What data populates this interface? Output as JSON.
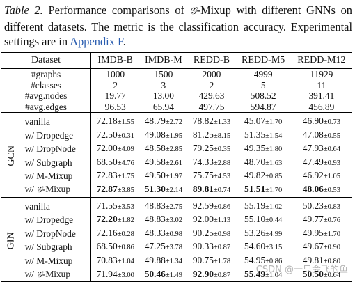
{
  "caption": {
    "label": "Table 2.",
    "text_before": "Performance comparisons of",
    "g_symbol": "𝒢",
    "text_mid": "-Mixup with different GNNs on different datasets. The metric is the classification accuracy. Experimental settings are in",
    "link": "Appendix F",
    "text_end": "."
  },
  "header": {
    "dataset": "Dataset",
    "cols": [
      "IMDB-B",
      "IMDB-M",
      "REDD-B",
      "REDD-M5",
      "REDD-M12"
    ]
  },
  "stats": [
    {
      "label": "#graphs",
      "values": [
        "1000",
        "1500",
        "2000",
        "4999",
        "11929"
      ]
    },
    {
      "label": "#classes",
      "values": [
        "2",
        "3",
        "2",
        "5",
        "11"
      ]
    },
    {
      "label": "#avg.nodes",
      "values": [
        "19.77",
        "13.00",
        "429.63",
        "508.52",
        "391.41"
      ]
    },
    {
      "label": "#avg.edges",
      "values": [
        "96.53",
        "65.94",
        "497.75",
        "594.87",
        "456.89"
      ]
    }
  ],
  "sections": [
    {
      "name": "GCN",
      "rows": [
        {
          "method": "vanilla",
          "cells": [
            [
              "72.18",
              "1.55",
              false
            ],
            [
              "48.79",
              "2.72",
              false
            ],
            [
              "78.82",
              "1.33",
              false
            ],
            [
              "45.07",
              "1.70",
              false
            ],
            [
              "46.90",
              "0.73",
              false
            ]
          ]
        },
        {
          "method": "w/ Dropedge",
          "cells": [
            [
              "72.50",
              "0.31",
              false
            ],
            [
              "49.08",
              "1.95",
              false
            ],
            [
              "81.25",
              "8.15",
              false
            ],
            [
              "51.35",
              "1.54",
              false
            ],
            [
              "47.08",
              "0.55",
              false
            ]
          ]
        },
        {
          "method": "w/ DropNode",
          "cells": [
            [
              "72.00",
              "4.09",
              false
            ],
            [
              "48.58",
              "2.85",
              false
            ],
            [
              "79.25",
              "0.35",
              false
            ],
            [
              "49.35",
              "1.80",
              false
            ],
            [
              "47.93",
              "0.64",
              false
            ]
          ]
        },
        {
          "method": "w/ Subgraph",
          "cells": [
            [
              "68.50",
              "4.76",
              false
            ],
            [
              "49.58",
              "2.61",
              false
            ],
            [
              "74.33",
              "2.88",
              false
            ],
            [
              "48.70",
              "1.63",
              false
            ],
            [
              "47.49",
              "0.93",
              false
            ]
          ]
        },
        {
          "method": "w/ M-Mixup",
          "cells": [
            [
              "72.83",
              "1.75",
              false
            ],
            [
              "49.50",
              "1.97",
              false
            ],
            [
              "75.75",
              "4.53",
              false
            ],
            [
              "49.82",
              "0.85",
              false
            ],
            [
              "46.92",
              "1.05",
              false
            ]
          ]
        },
        {
          "method_prefix": "w/ ",
          "method_g": "𝒢",
          "method_suffix": "-Mixup",
          "cells": [
            [
              "72.87",
              "3.85",
              true
            ],
            [
              "51.30",
              "2.14",
              true
            ],
            [
              "89.81",
              "0.74",
              true
            ],
            [
              "51.51",
              "1.70",
              true
            ],
            [
              "48.06",
              "0.53",
              true
            ]
          ]
        }
      ]
    },
    {
      "name": "GIN",
      "rows": [
        {
          "method": "vanilla",
          "cells": [
            [
              "71.55",
              "3.53",
              false
            ],
            [
              "48.83",
              "2.75",
              false
            ],
            [
              "92.59",
              "0.86",
              false
            ],
            [
              "55.19",
              "1.02",
              false
            ],
            [
              "50.23",
              "0.83",
              false
            ]
          ]
        },
        {
          "method": "w/ Dropedge",
          "cells": [
            [
              "72.20",
              "1.82",
              true
            ],
            [
              "48.83",
              "3.02",
              false
            ],
            [
              "92.00",
              "1.13",
              false
            ],
            [
              "55.10",
              "0.44",
              false
            ],
            [
              "49.77",
              "0.76",
              false
            ]
          ]
        },
        {
          "method": "w/ DropNode",
          "cells": [
            [
              "72.16",
              "0.28",
              false
            ],
            [
              "48.33",
              "0.98",
              false
            ],
            [
              "90.25",
              "0.98",
              false
            ],
            [
              "53.26",
              "4.99",
              false
            ],
            [
              "49.95",
              "1.70",
              false
            ]
          ]
        },
        {
          "method": "w/ Subgraph",
          "cells": [
            [
              "68.50",
              "0.86",
              false
            ],
            [
              "47.25",
              "3.78",
              false
            ],
            [
              "90.33",
              "0.87",
              false
            ],
            [
              "54.60",
              "3.15",
              false
            ],
            [
              "49.67",
              "0.90",
              false
            ]
          ]
        },
        {
          "method": "w/ M-Mixup",
          "cells": [
            [
              "70.83",
              "1.04",
              false
            ],
            [
              "49.88",
              "1.34",
              false
            ],
            [
              "90.75",
              "1.78",
              false
            ],
            [
              "54.95",
              "0.86",
              false
            ],
            [
              "49.81",
              "0.80",
              false
            ]
          ]
        },
        {
          "method_prefix": "w/ ",
          "method_g": "𝒢",
          "method_suffix": "-Mixup",
          "cells": [
            [
              "71.94",
              "3.00",
              false
            ],
            [
              "50.46",
              "1.49",
              true
            ],
            [
              "92.90",
              "0.87",
              true
            ],
            [
              "55.49",
              "1.04",
              true
            ],
            [
              "50.50",
              "0.64",
              true
            ]
          ]
        }
      ]
    }
  ],
  "watermark": "CSDN @一只会飞的鱼"
}
